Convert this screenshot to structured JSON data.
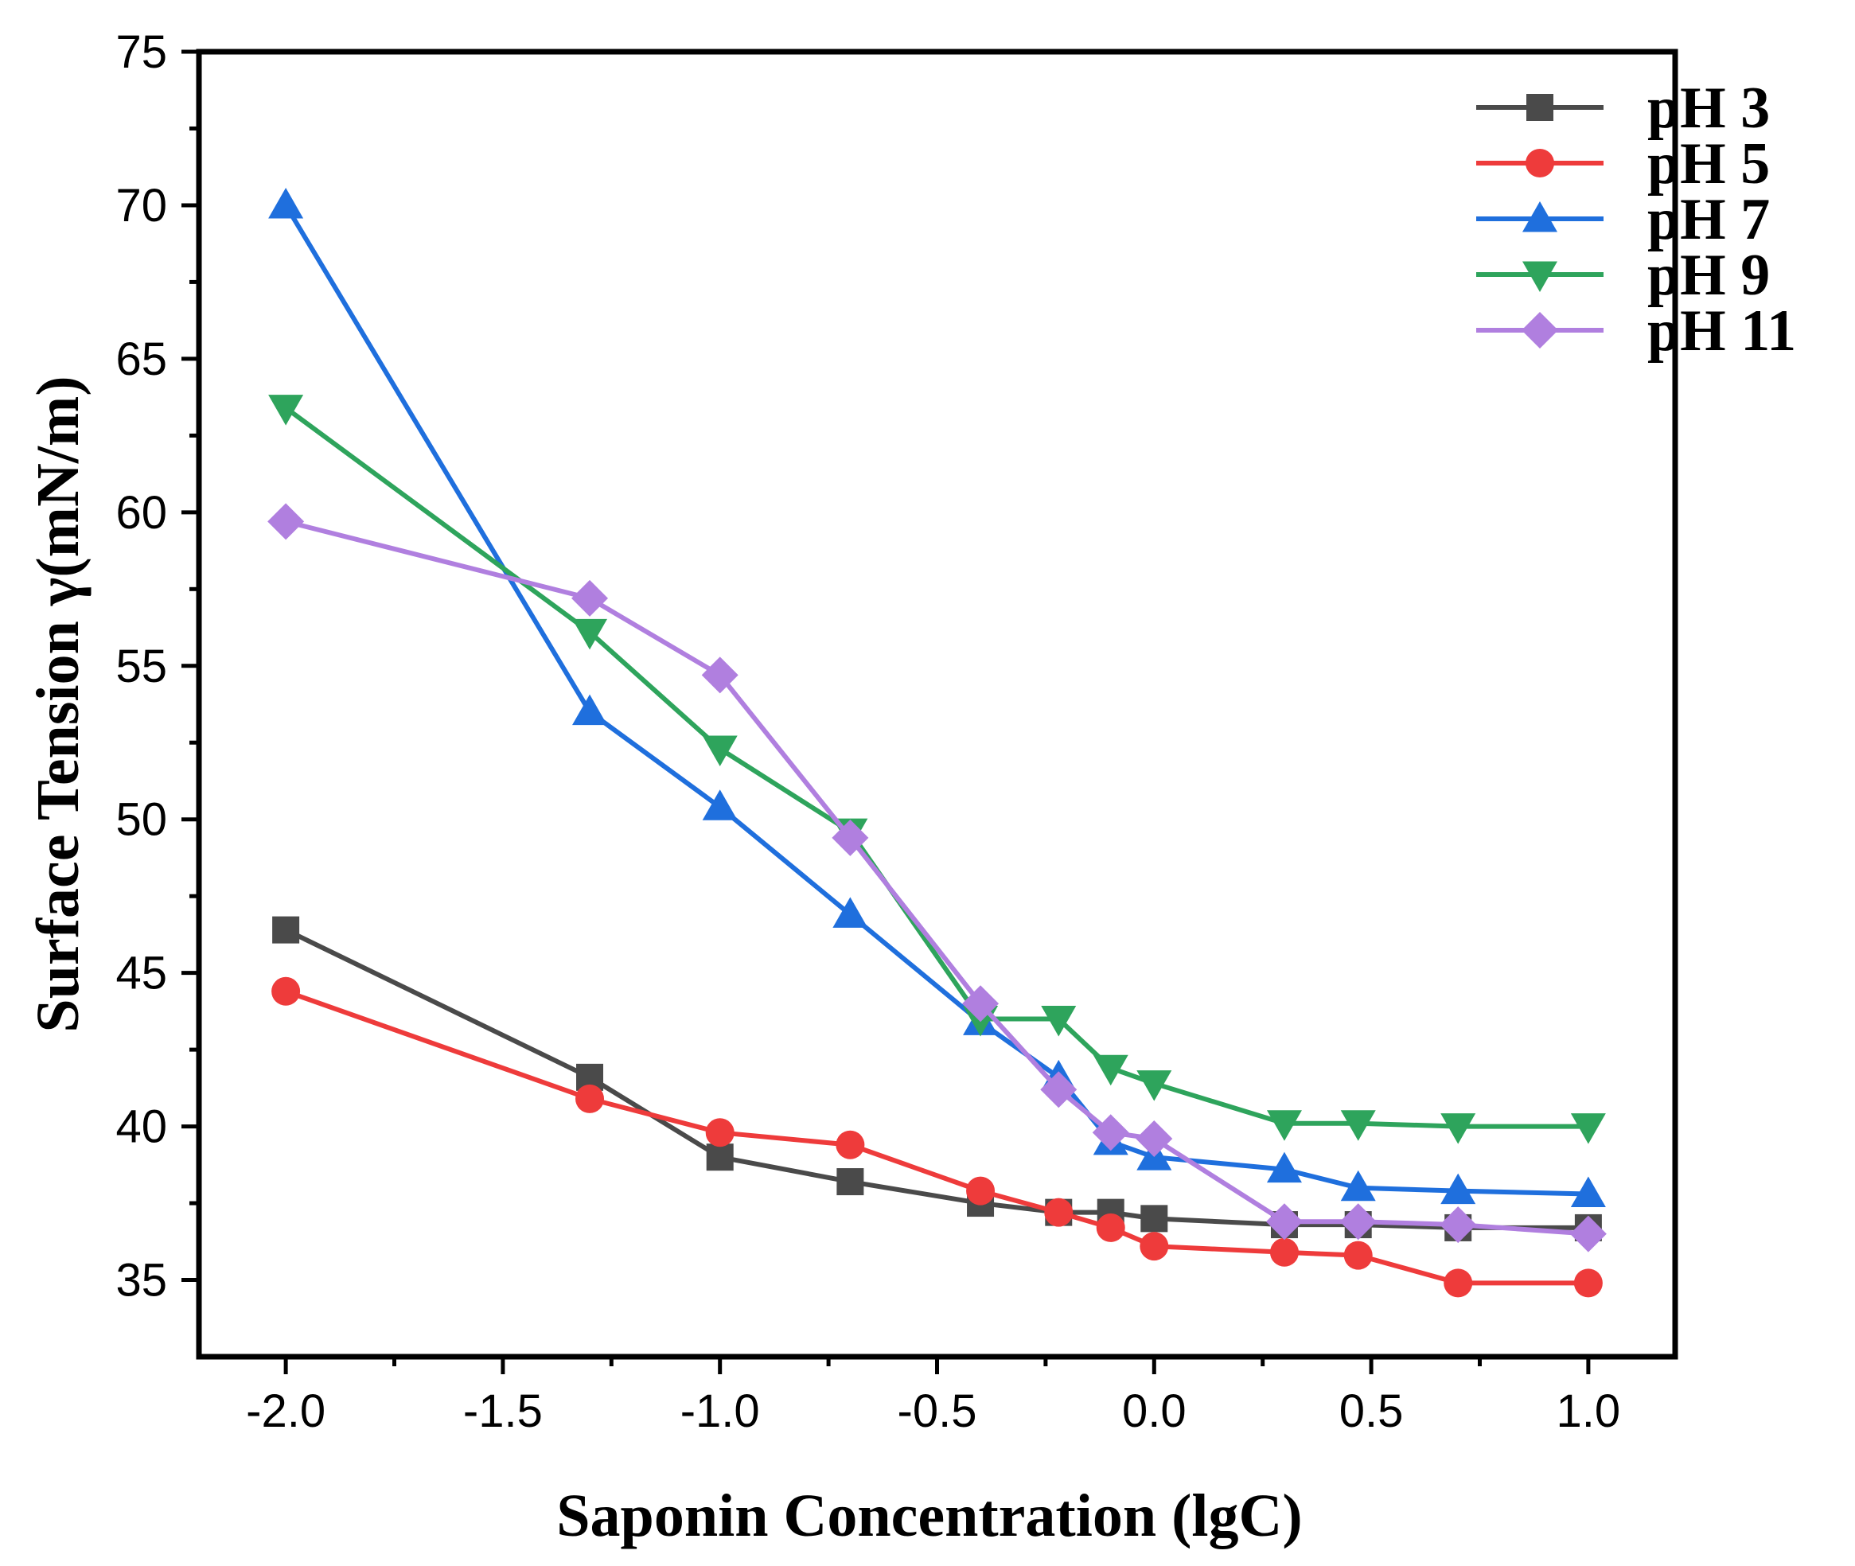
{
  "chart_data": {
    "type": "line",
    "title": "",
    "xlabel": "Saponin Concentration (lgC)",
    "ylabel": "Surface Tension γ(mN/m)",
    "xlim": [
      -2.2,
      1.2
    ],
    "ylim": [
      32.5,
      75
    ],
    "xticks": [
      "-2.0",
      "-1.5",
      "-1.0",
      "-0.5",
      "0.0",
      "0.5",
      "1.0"
    ],
    "yticks": [
      "35",
      "40",
      "45",
      "50",
      "55",
      "60",
      "65",
      "70",
      "75"
    ],
    "legend_position": "top-right",
    "x": [
      -2.0,
      -1.3,
      -1.0,
      -0.7,
      -0.4,
      -0.22,
      -0.1,
      0.0,
      0.3,
      0.47,
      0.7,
      1.0
    ],
    "series": [
      {
        "name": "pH 3",
        "color": "#4a4a4a",
        "marker": "square",
        "values": [
          46.4,
          41.6,
          39.0,
          38.2,
          37.5,
          37.2,
          37.2,
          37.0,
          36.8,
          36.8,
          36.7,
          36.7
        ]
      },
      {
        "name": "pH 5",
        "color": "#ee3b3b",
        "marker": "circle",
        "values": [
          44.4,
          40.9,
          39.8,
          39.4,
          37.9,
          37.2,
          36.7,
          36.1,
          35.9,
          35.8,
          34.9,
          34.9
        ]
      },
      {
        "name": "pH 7",
        "color": "#1f6fdd",
        "marker": "triangle-up",
        "values": [
          70.0,
          53.5,
          50.4,
          46.9,
          43.4,
          41.6,
          39.5,
          39.0,
          38.6,
          38.0,
          37.9,
          37.8
        ]
      },
      {
        "name": "pH 9",
        "color": "#2ea45c",
        "marker": "triangle-down",
        "values": [
          63.4,
          56.1,
          52.3,
          49.6,
          43.5,
          43.5,
          41.9,
          41.4,
          40.1,
          40.1,
          40.0,
          40.0
        ]
      },
      {
        "name": "pH 11",
        "color": "#b07fdf",
        "marker": "diamond",
        "values": [
          59.7,
          57.2,
          54.7,
          49.4,
          44.0,
          41.2,
          39.8,
          39.6,
          36.9,
          36.9,
          36.8,
          36.5
        ]
      }
    ]
  }
}
